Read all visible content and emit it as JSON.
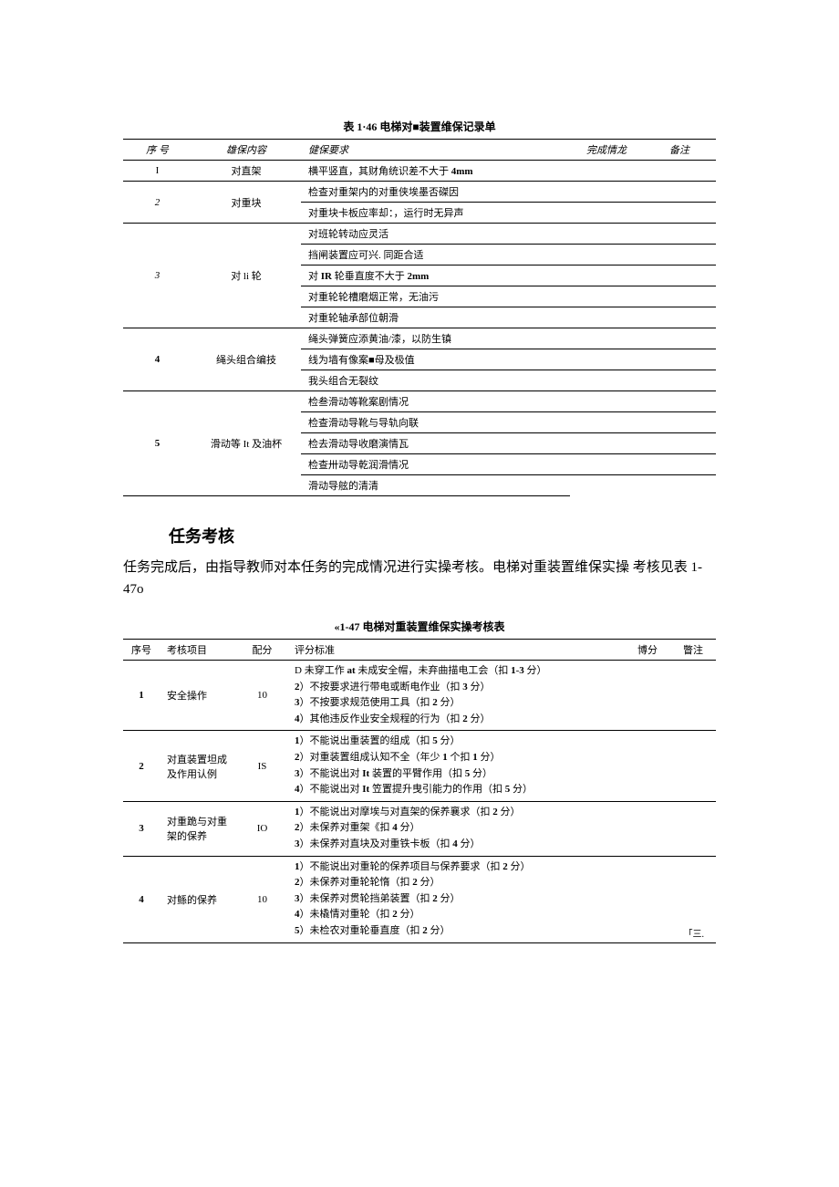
{
  "table1": {
    "title": "表 1·46 电梯对■装置维保记录单",
    "headers": [
      "序 号",
      "雄保内容",
      "健保要求",
      "完成情龙",
      "备注"
    ],
    "groups": [
      {
        "seq": "I",
        "item": "对直架",
        "reqs": [
          "横平竖直，其财角统识差不大于 4mm"
        ],
        "bold": false
      },
      {
        "seq": "2",
        "item": "对重块",
        "reqs": [
          "检查对重架内的对重侠埃墨否磔因",
          "对重块卡板应率却：，运行时无异声"
        ],
        "italic": true
      },
      {
        "seq": "3",
        "item": "对 li 轮",
        "reqs": [
          "对班轮转动应灵活",
          "挡闸装置应可兴. 同距合适",
          "对 IR 轮垂直度不大于 2mm",
          "对重轮轮槽磨烟正常，无油污",
          "对重轮轴承部位朝滑"
        ],
        "italic": true
      },
      {
        "seq": "4",
        "item": "绳头组合编技",
        "reqs": [
          "绳头弹簧应添黄油/漆，以防生镇",
          "线为墙有像案■母及极值",
          "我头组合无裂纹"
        ],
        "bold": true
      },
      {
        "seq": "5",
        "item": "滑动等 It 及油杯",
        "reqs": [
          "检叁滑动等靴案剧情况",
          "检查滑动导靴与导轨向联",
          "检去滑动导收磨演情瓦",
          "检查卅动导乾润滑情况",
          "滑动导舷的清清"
        ],
        "bold": true
      }
    ]
  },
  "section": {
    "heading": "任务考核",
    "body": "任务完成后，由指导教师对本任务的完成情况进行实操考核。电梯对重装置维保实操 考核见表 1-47o"
  },
  "table2": {
    "title": "«1-47 电梯对重装置维保实操考核表",
    "headers": [
      "序号",
      "考核项目",
      "配分",
      "评分标准",
      "博分",
      "瞥注"
    ],
    "rows": [
      {
        "seq": "1",
        "item": "安全操作",
        "score": "10",
        "criteria": "D 未穿工作 at 未成安全帽，未弃曲描电工会（扣 1-3 分）\n2）不按要求进行带电或断电作业（扣 3 分）\n3）不按要求规范使用工具（扣 2 分）\n4）其他违反作业安全规程的行为（扣 2 分）"
      },
      {
        "seq": "2",
        "item": "对直装置坦成及作用认例",
        "score": "IS",
        "criteria": "1）不能说出重装置的组成（扣 5 分）\n2）对重装置组成认知不全（年少 1 个扣 1 分）\n3）不能说出对 It 装置的平臂作用（扣 5 分）\n4）不能说出对 It 笠置提升曳引能力的作用（扣 5 分）"
      },
      {
        "seq": "3",
        "item": "对重跪与对重架的保养",
        "score": "IO",
        "criteria": "1）不能说出对摩埃与对直架的保养襄求（扣 2 分）\n2）未保养对重架《扣 4 分）\n3）未保养对直块及对重铁卡板（扣 4 分）"
      },
      {
        "seq": "4",
        "item": "对鲧的保养",
        "score": "10",
        "criteria": "1）不能说出对重轮的保养项目与保养要求（扣 2 分）\n2）未保养对重轮轮惰（扣 2 分）\n3）未保养对贯轮挡弟装置（扣 2 分）\n4）未橇情对重轮（扣 2 分）\n5）未检农对重轮垂直度（扣 2 分）"
      }
    ],
    "corner": "「三."
  }
}
